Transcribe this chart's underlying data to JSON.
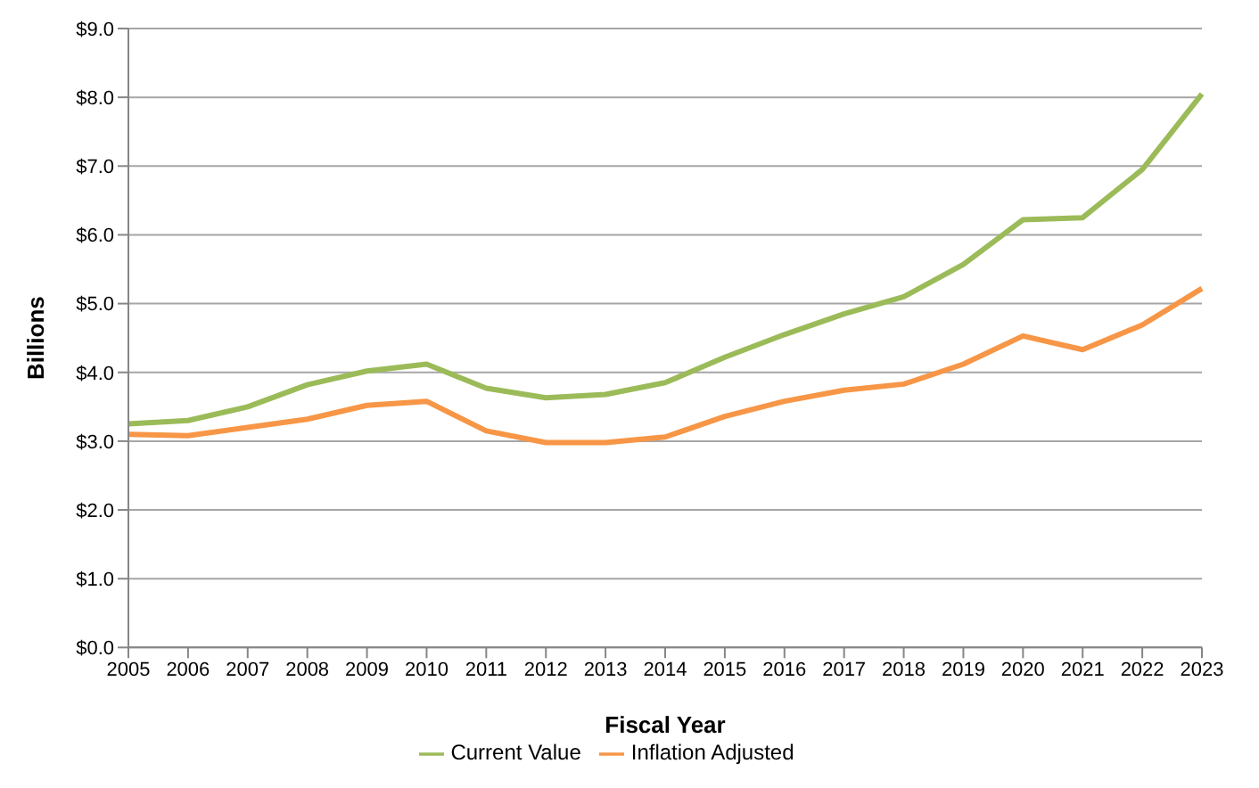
{
  "chart_data": {
    "type": "line",
    "xlabel": "Fiscal Year",
    "ylabel": "Billions",
    "categories": [
      "2005",
      "2006",
      "2007",
      "2008",
      "2009",
      "2010",
      "2011",
      "2012",
      "2013",
      "2014",
      "2015",
      "2016",
      "2017",
      "2018",
      "2019",
      "2020",
      "2021",
      "2022",
      "2023"
    ],
    "series": [
      {
        "name": "Current Value",
        "color": "#9bbb59",
        "values": [
          3.25,
          3.3,
          3.5,
          3.82,
          4.02,
          4.12,
          3.77,
          3.63,
          3.68,
          3.85,
          4.22,
          4.55,
          4.85,
          5.1,
          5.57,
          6.22,
          6.25,
          6.95,
          8.05
        ]
      },
      {
        "name": "Inflation Adjusted",
        "color": "#f79646",
        "values": [
          3.1,
          3.08,
          3.2,
          3.32,
          3.52,
          3.58,
          3.15,
          2.98,
          2.98,
          3.06,
          3.36,
          3.58,
          3.74,
          3.83,
          4.12,
          4.53,
          4.33,
          4.69,
          5.22
        ]
      }
    ],
    "ylim": [
      0,
      9
    ],
    "yticks": [
      {
        "value": 0,
        "label": "$0.0"
      },
      {
        "value": 1,
        "label": "$1.0"
      },
      {
        "value": 2,
        "label": "$2.0"
      },
      {
        "value": 3,
        "label": "$3.0"
      },
      {
        "value": 4,
        "label": "$4.0"
      },
      {
        "value": 5,
        "label": "$5.0"
      },
      {
        "value": 6,
        "label": "$6.0"
      },
      {
        "value": 7,
        "label": "$7.0"
      },
      {
        "value": 8,
        "label": "$8.0"
      },
      {
        "value": 9,
        "label": "$9.0"
      }
    ],
    "grid": "y",
    "legend": "bottom",
    "marker": "none",
    "line_style": "solid"
  }
}
